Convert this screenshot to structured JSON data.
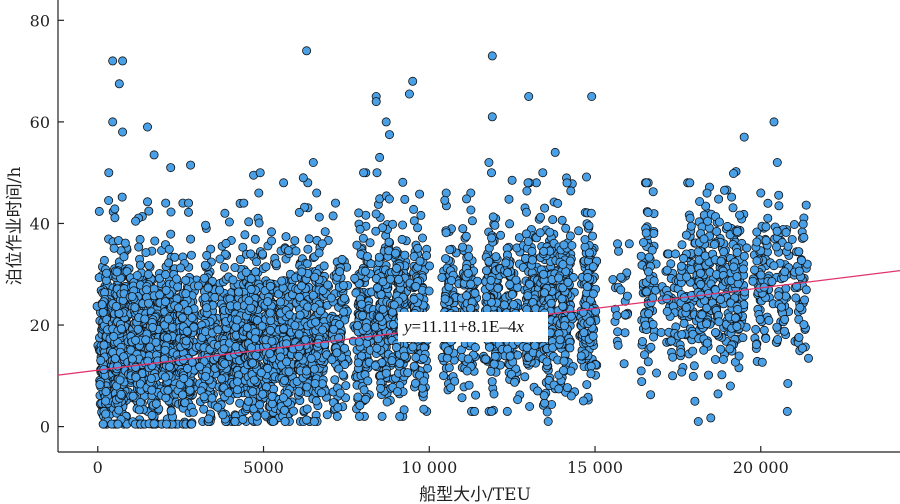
{
  "chart_data": {
    "type": "scatter",
    "title": "",
    "xlabel": "船型大小/TEU",
    "ylabel": "泊位作业时间/h",
    "xlim": [
      -1200,
      24200
    ],
    "ylim": [
      -5,
      84
    ],
    "x_ticks": [
      0,
      5000,
      10000,
      15000,
      20000
    ],
    "x_tick_labels": [
      "0",
      "5000",
      "10 000",
      "15 000",
      "20 000"
    ],
    "y_ticks": [
      0,
      20,
      40,
      60,
      80
    ],
    "y_tick_labels": [
      "0",
      "20",
      "40",
      "60",
      "80"
    ],
    "grid": false,
    "legend": "none",
    "point_color": "#4aa0e6",
    "point_edge_color": "#111111",
    "line_color": "#e0336a",
    "regression": {
      "intercept": 11.11,
      "slope": 0.00081,
      "equation_var_y": "y",
      "equation_body": "=11.11+8.1E–4",
      "equation_var_x": "x"
    },
    "clusters": [
      {
        "x": 300,
        "n": 260,
        "y_median": 15,
        "y_spread": 8.5,
        "y_min": 0.5,
        "y_max": 50
      },
      {
        "x": 700,
        "n": 300,
        "y_median": 16,
        "y_spread": 8.5,
        "y_min": 0.5,
        "y_max": 50
      },
      {
        "x": 1200,
        "n": 240,
        "y_median": 16,
        "y_spread": 8,
        "y_min": 0.5,
        "y_max": 46
      },
      {
        "x": 1700,
        "n": 220,
        "y_median": 16,
        "y_spread": 8,
        "y_min": 0.5,
        "y_max": 46
      },
      {
        "x": 2200,
        "n": 200,
        "y_median": 16,
        "y_spread": 8,
        "y_min": 0.5,
        "y_max": 44
      },
      {
        "x": 2700,
        "n": 200,
        "y_median": 16,
        "y_spread": 8,
        "y_min": 0.5,
        "y_max": 44
      },
      {
        "x": 3300,
        "n": 180,
        "y_median": 16,
        "y_spread": 7.5,
        "y_min": 1,
        "y_max": 42
      },
      {
        "x": 3900,
        "n": 170,
        "y_median": 16,
        "y_spread": 7.5,
        "y_min": 1,
        "y_max": 42
      },
      {
        "x": 4300,
        "n": 170,
        "y_median": 16,
        "y_spread": 7.5,
        "y_min": 1,
        "y_max": 44
      },
      {
        "x": 4700,
        "n": 180,
        "y_median": 17,
        "y_spread": 8,
        "y_min": 1,
        "y_max": 46
      },
      {
        "x": 5200,
        "n": 170,
        "y_median": 17,
        "y_spread": 8,
        "y_min": 1,
        "y_max": 46
      },
      {
        "x": 5700,
        "n": 170,
        "y_median": 17,
        "y_spread": 8,
        "y_min": 1,
        "y_max": 48
      },
      {
        "x": 6200,
        "n": 180,
        "y_median": 18,
        "y_spread": 8,
        "y_min": 1,
        "y_max": 48
      },
      {
        "x": 6700,
        "n": 160,
        "y_median": 18,
        "y_spread": 8,
        "y_min": 1,
        "y_max": 46
      },
      {
        "x": 7300,
        "n": 110,
        "y_median": 18,
        "y_spread": 7.5,
        "y_min": 2,
        "y_max": 44
      },
      {
        "x": 8000,
        "n": 170,
        "y_median": 20,
        "y_spread": 8,
        "y_min": 2,
        "y_max": 50
      },
      {
        "x": 8600,
        "n": 200,
        "y_median": 21,
        "y_spread": 8,
        "y_min": 2,
        "y_max": 50
      },
      {
        "x": 9100,
        "n": 180,
        "y_median": 21,
        "y_spread": 8,
        "y_min": 2,
        "y_max": 50
      },
      {
        "x": 9700,
        "n": 150,
        "y_median": 21,
        "y_spread": 8,
        "y_min": 3,
        "y_max": 50
      },
      {
        "x": 10600,
        "n": 110,
        "y_median": 22,
        "y_spread": 7.5,
        "y_min": 3,
        "y_max": 46
      },
      {
        "x": 11200,
        "n": 120,
        "y_median": 22,
        "y_spread": 7.5,
        "y_min": 3,
        "y_max": 46
      },
      {
        "x": 11900,
        "n": 150,
        "y_median": 23,
        "y_spread": 8,
        "y_min": 3,
        "y_max": 50
      },
      {
        "x": 12500,
        "n": 110,
        "y_median": 22,
        "y_spread": 7.5,
        "y_min": 3,
        "y_max": 46
      },
      {
        "x": 13100,
        "n": 140,
        "y_median": 22,
        "y_spread": 8,
        "y_min": 1,
        "y_max": 48
      },
      {
        "x": 13600,
        "n": 160,
        "y_median": 23,
        "y_spread": 8,
        "y_min": 1,
        "y_max": 50
      },
      {
        "x": 14100,
        "n": 140,
        "y_median": 23,
        "y_spread": 8,
        "y_min": 2,
        "y_max": 50
      },
      {
        "x": 14800,
        "n": 150,
        "y_median": 24,
        "y_spread": 8,
        "y_min": 3,
        "y_max": 50
      },
      {
        "x": 15800,
        "n": 25,
        "y_median": 24,
        "y_spread": 6,
        "y_min": 12,
        "y_max": 36
      },
      {
        "x": 16600,
        "n": 80,
        "y_median": 27,
        "y_spread": 8,
        "y_min": 5,
        "y_max": 48
      },
      {
        "x": 17300,
        "n": 40,
        "y_median": 22,
        "y_spread": 6,
        "y_min": 10,
        "y_max": 34
      },
      {
        "x": 17800,
        "n": 90,
        "y_median": 26,
        "y_spread": 8,
        "y_min": 5,
        "y_max": 48
      },
      {
        "x": 18300,
        "n": 100,
        "y_median": 26,
        "y_spread": 8,
        "y_min": 1,
        "y_max": 48
      },
      {
        "x": 18800,
        "n": 90,
        "y_median": 26,
        "y_spread": 8,
        "y_min": 4,
        "y_max": 48
      },
      {
        "x": 19300,
        "n": 110,
        "y_median": 27,
        "y_spread": 8,
        "y_min": 8,
        "y_max": 52
      },
      {
        "x": 20000,
        "n": 70,
        "y_median": 28,
        "y_spread": 7,
        "y_min": 12,
        "y_max": 46
      },
      {
        "x": 20600,
        "n": 60,
        "y_median": 28,
        "y_spread": 7,
        "y_min": 3,
        "y_max": 46
      },
      {
        "x": 21200,
        "n": 50,
        "y_median": 28,
        "y_spread": 7,
        "y_min": 8,
        "y_max": 48
      }
    ],
    "outliers": [
      [
        450,
        72
      ],
      [
        750,
        72
      ],
      [
        650,
        67.5
      ],
      [
        450,
        60
      ],
      [
        750,
        58
      ],
      [
        1500,
        59
      ],
      [
        1700,
        53.5
      ],
      [
        2800,
        51.5
      ],
      [
        2200,
        51
      ],
      [
        4700,
        49.5
      ],
      [
        4900,
        50
      ],
      [
        6300,
        74
      ],
      [
        6500,
        52
      ],
      [
        6200,
        49
      ],
      [
        8400,
        65
      ],
      [
        8400,
        64
      ],
      [
        8700,
        60
      ],
      [
        9400,
        65.5
      ],
      [
        9500,
        68
      ],
      [
        8500,
        53
      ],
      [
        8800,
        57.5
      ],
      [
        11900,
        73
      ],
      [
        11900,
        61
      ],
      [
        11800,
        52
      ],
      [
        12500,
        48.5
      ],
      [
        13000,
        65
      ],
      [
        14900,
        65
      ],
      [
        13800,
        54
      ],
      [
        19500,
        57
      ],
      [
        20400,
        60
      ],
      [
        20500,
        52
      ],
      [
        20800,
        3
      ]
    ]
  }
}
